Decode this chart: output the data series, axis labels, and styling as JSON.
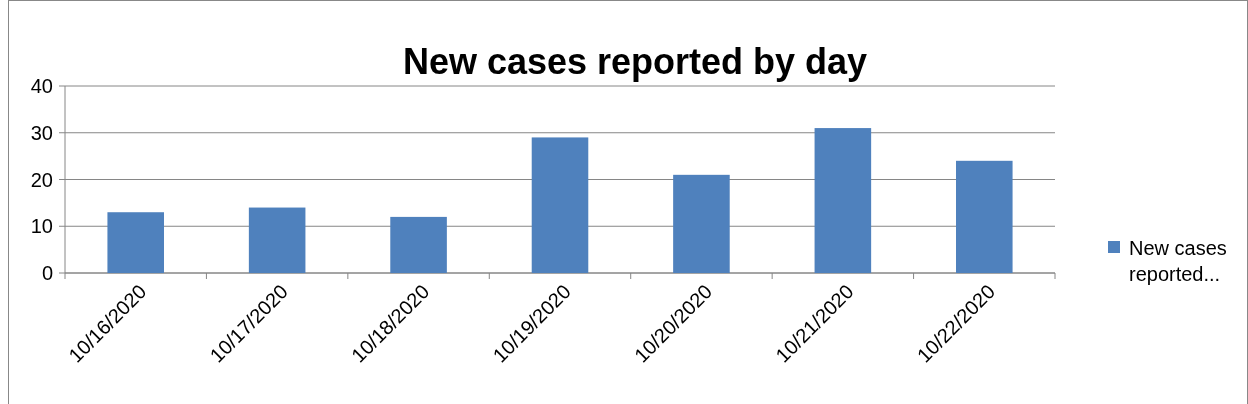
{
  "chart_data": {
    "type": "bar",
    "title": "New cases reported by day",
    "categories": [
      "10/16/2020",
      "10/17/2020",
      "10/18/2020",
      "10/19/2020",
      "10/20/2020",
      "10/21/2020",
      "10/22/2020"
    ],
    "series": [
      {
        "name": "New cases reported...",
        "color": "#4f81bd",
        "values": [
          13,
          14,
          12,
          29,
          21,
          31,
          24
        ]
      }
    ],
    "ylim": [
      0,
      40
    ],
    "yticks": [
      0,
      10,
      20,
      30,
      40
    ],
    "grid": "y",
    "legend": "right"
  }
}
